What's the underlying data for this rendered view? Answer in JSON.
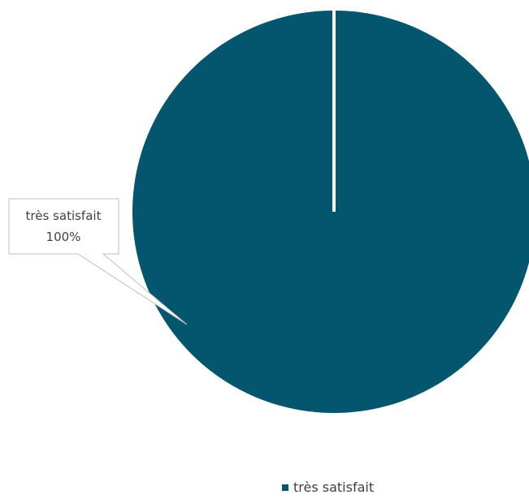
{
  "chart_data": {
    "type": "pie",
    "categories": [
      "très satisfait"
    ],
    "values": [
      100
    ],
    "percent_labels": [
      "100%"
    ],
    "colors": [
      "#03566e"
    ],
    "title": "",
    "legend": {
      "placement": "bottom",
      "entries": [
        "très satisfait"
      ]
    },
    "data_labels": "callout"
  }
}
